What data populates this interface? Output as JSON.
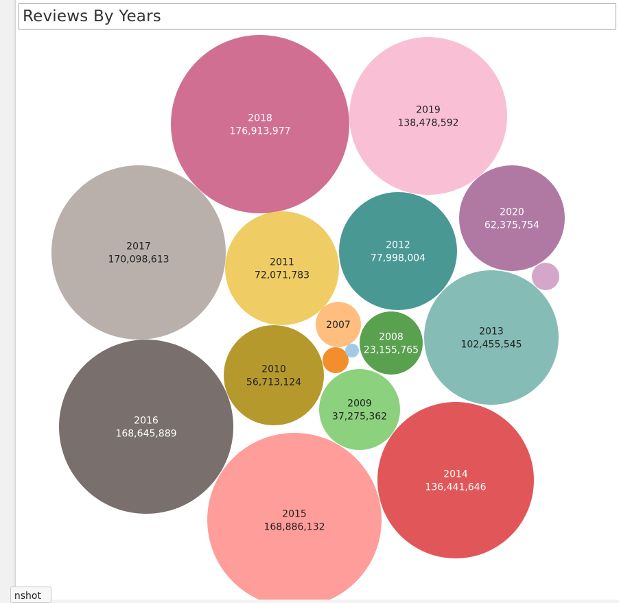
{
  "title": "Reviews By Years",
  "tab_stub_label": "nshot",
  "chart_data": {
    "type": "bubble",
    "title": "Reviews By Years",
    "bubbles": [
      {
        "label": "2018",
        "value": "176,913,977",
        "color": "#d16f93",
        "text_color": "#ffffff"
      },
      {
        "label": "2019",
        "value": "138,478,592",
        "color": "#f9bfd5",
        "text_color": "#222222"
      },
      {
        "label": "2017",
        "value": "170,098,613",
        "color": "#b9b0ac",
        "text_color": "#222222"
      },
      {
        "label": "2020",
        "value": "62,375,754",
        "color": "#b079a3",
        "text_color": "#ffffff"
      },
      {
        "label": "",
        "value": "",
        "color": "#d4a6c9",
        "text_color": "#ffffff"
      },
      {
        "label": "2011",
        "value": "72,071,783",
        "color": "#efcd64",
        "text_color": "#222222"
      },
      {
        "label": "2012",
        "value": "77,998,004",
        "color": "#499894",
        "text_color": "#ffffff"
      },
      {
        "label": "2007",
        "value": "",
        "color": "#ffbe7d",
        "text_color": "#222222"
      },
      {
        "label": "2008",
        "value": "23,155,765",
        "color": "#59a14f",
        "text_color": "#ffffff"
      },
      {
        "label": "2013",
        "value": "102,455,545",
        "color": "#86bcb6",
        "text_color": "#222222"
      },
      {
        "label": "",
        "value": "",
        "color": "#f28e2b",
        "text_color": "#ffffff"
      },
      {
        "label": "",
        "value": "",
        "color": "#a0cbe8",
        "text_color": "#ffffff"
      },
      {
        "label": "2010",
        "value": "56,713,124",
        "color": "#b6992d",
        "text_color": "#222222"
      },
      {
        "label": "2016",
        "value": "168,645,889",
        "color": "#796f6c",
        "text_color": "#ffffff"
      },
      {
        "label": "2009",
        "value": "37,275,362",
        "color": "#8cd17d",
        "text_color": "#222222"
      },
      {
        "label": "2015",
        "value": "168,886,132",
        "color": "#ff9d9a",
        "text_color": "#222222"
      },
      {
        "label": "2014",
        "value": "136,441,646",
        "color": "#e15759",
        "text_color": "#ffffff"
      }
    ]
  }
}
